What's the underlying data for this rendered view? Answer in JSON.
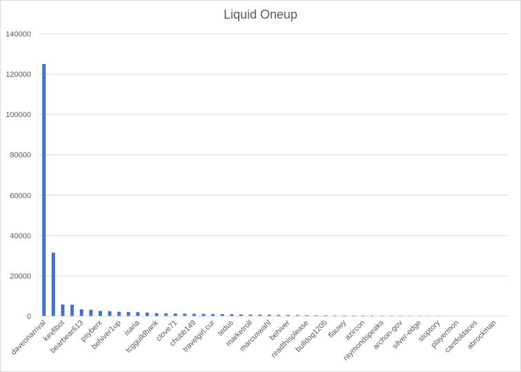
{
  "chart_data": {
    "type": "bar",
    "title": "Liquid Oneup",
    "xlabel": "",
    "ylabel": "",
    "ylim": [
      0,
      140000
    ],
    "yticks": [
      0,
      20000,
      40000,
      60000,
      80000,
      100000,
      120000,
      140000
    ],
    "grid": true,
    "legend": "none",
    "bar_color": "#4472c4",
    "grid_color": "#d9d9d9",
    "text_color": "#595959",
    "label_every": 2,
    "categories": [
      "daveonarrival",
      "",
      "kevfibot",
      "",
      "bearbear613",
      "",
      "psyberx",
      "",
      "behiver1up",
      "",
      "isaria",
      "",
      "tcgguildbank",
      "",
      "clove71",
      "",
      "chubb149",
      "",
      "travelgirl.cur",
      "",
      "tedus",
      "",
      "marketroll",
      "",
      "marcuswahl",
      "",
      "behiver",
      "",
      "readthisplease",
      "",
      "bulldog1205",
      "",
      "flauwy",
      "",
      "azircon",
      "",
      "raymondspeaks",
      "",
      "archon-gov",
      "",
      "silver-edge",
      "",
      "stoptory",
      "",
      "playermon",
      "",
      "cantfoldaces",
      "",
      "abrockman",
      ""
    ],
    "values": [
      125000,
      31500,
      5800,
      5700,
      3400,
      3200,
      2600,
      2500,
      2200,
      2100,
      2000,
      1800,
      1500,
      1400,
      1300,
      1250,
      1200,
      1150,
      1100,
      1050,
      950,
      850,
      800,
      750,
      700,
      650,
      600,
      550,
      500,
      450,
      420,
      400,
      380,
      360,
      340,
      320,
      300,
      280,
      260,
      250,
      240,
      230,
      220,
      210,
      200,
      190,
      180,
      170,
      160,
      150
    ]
  }
}
